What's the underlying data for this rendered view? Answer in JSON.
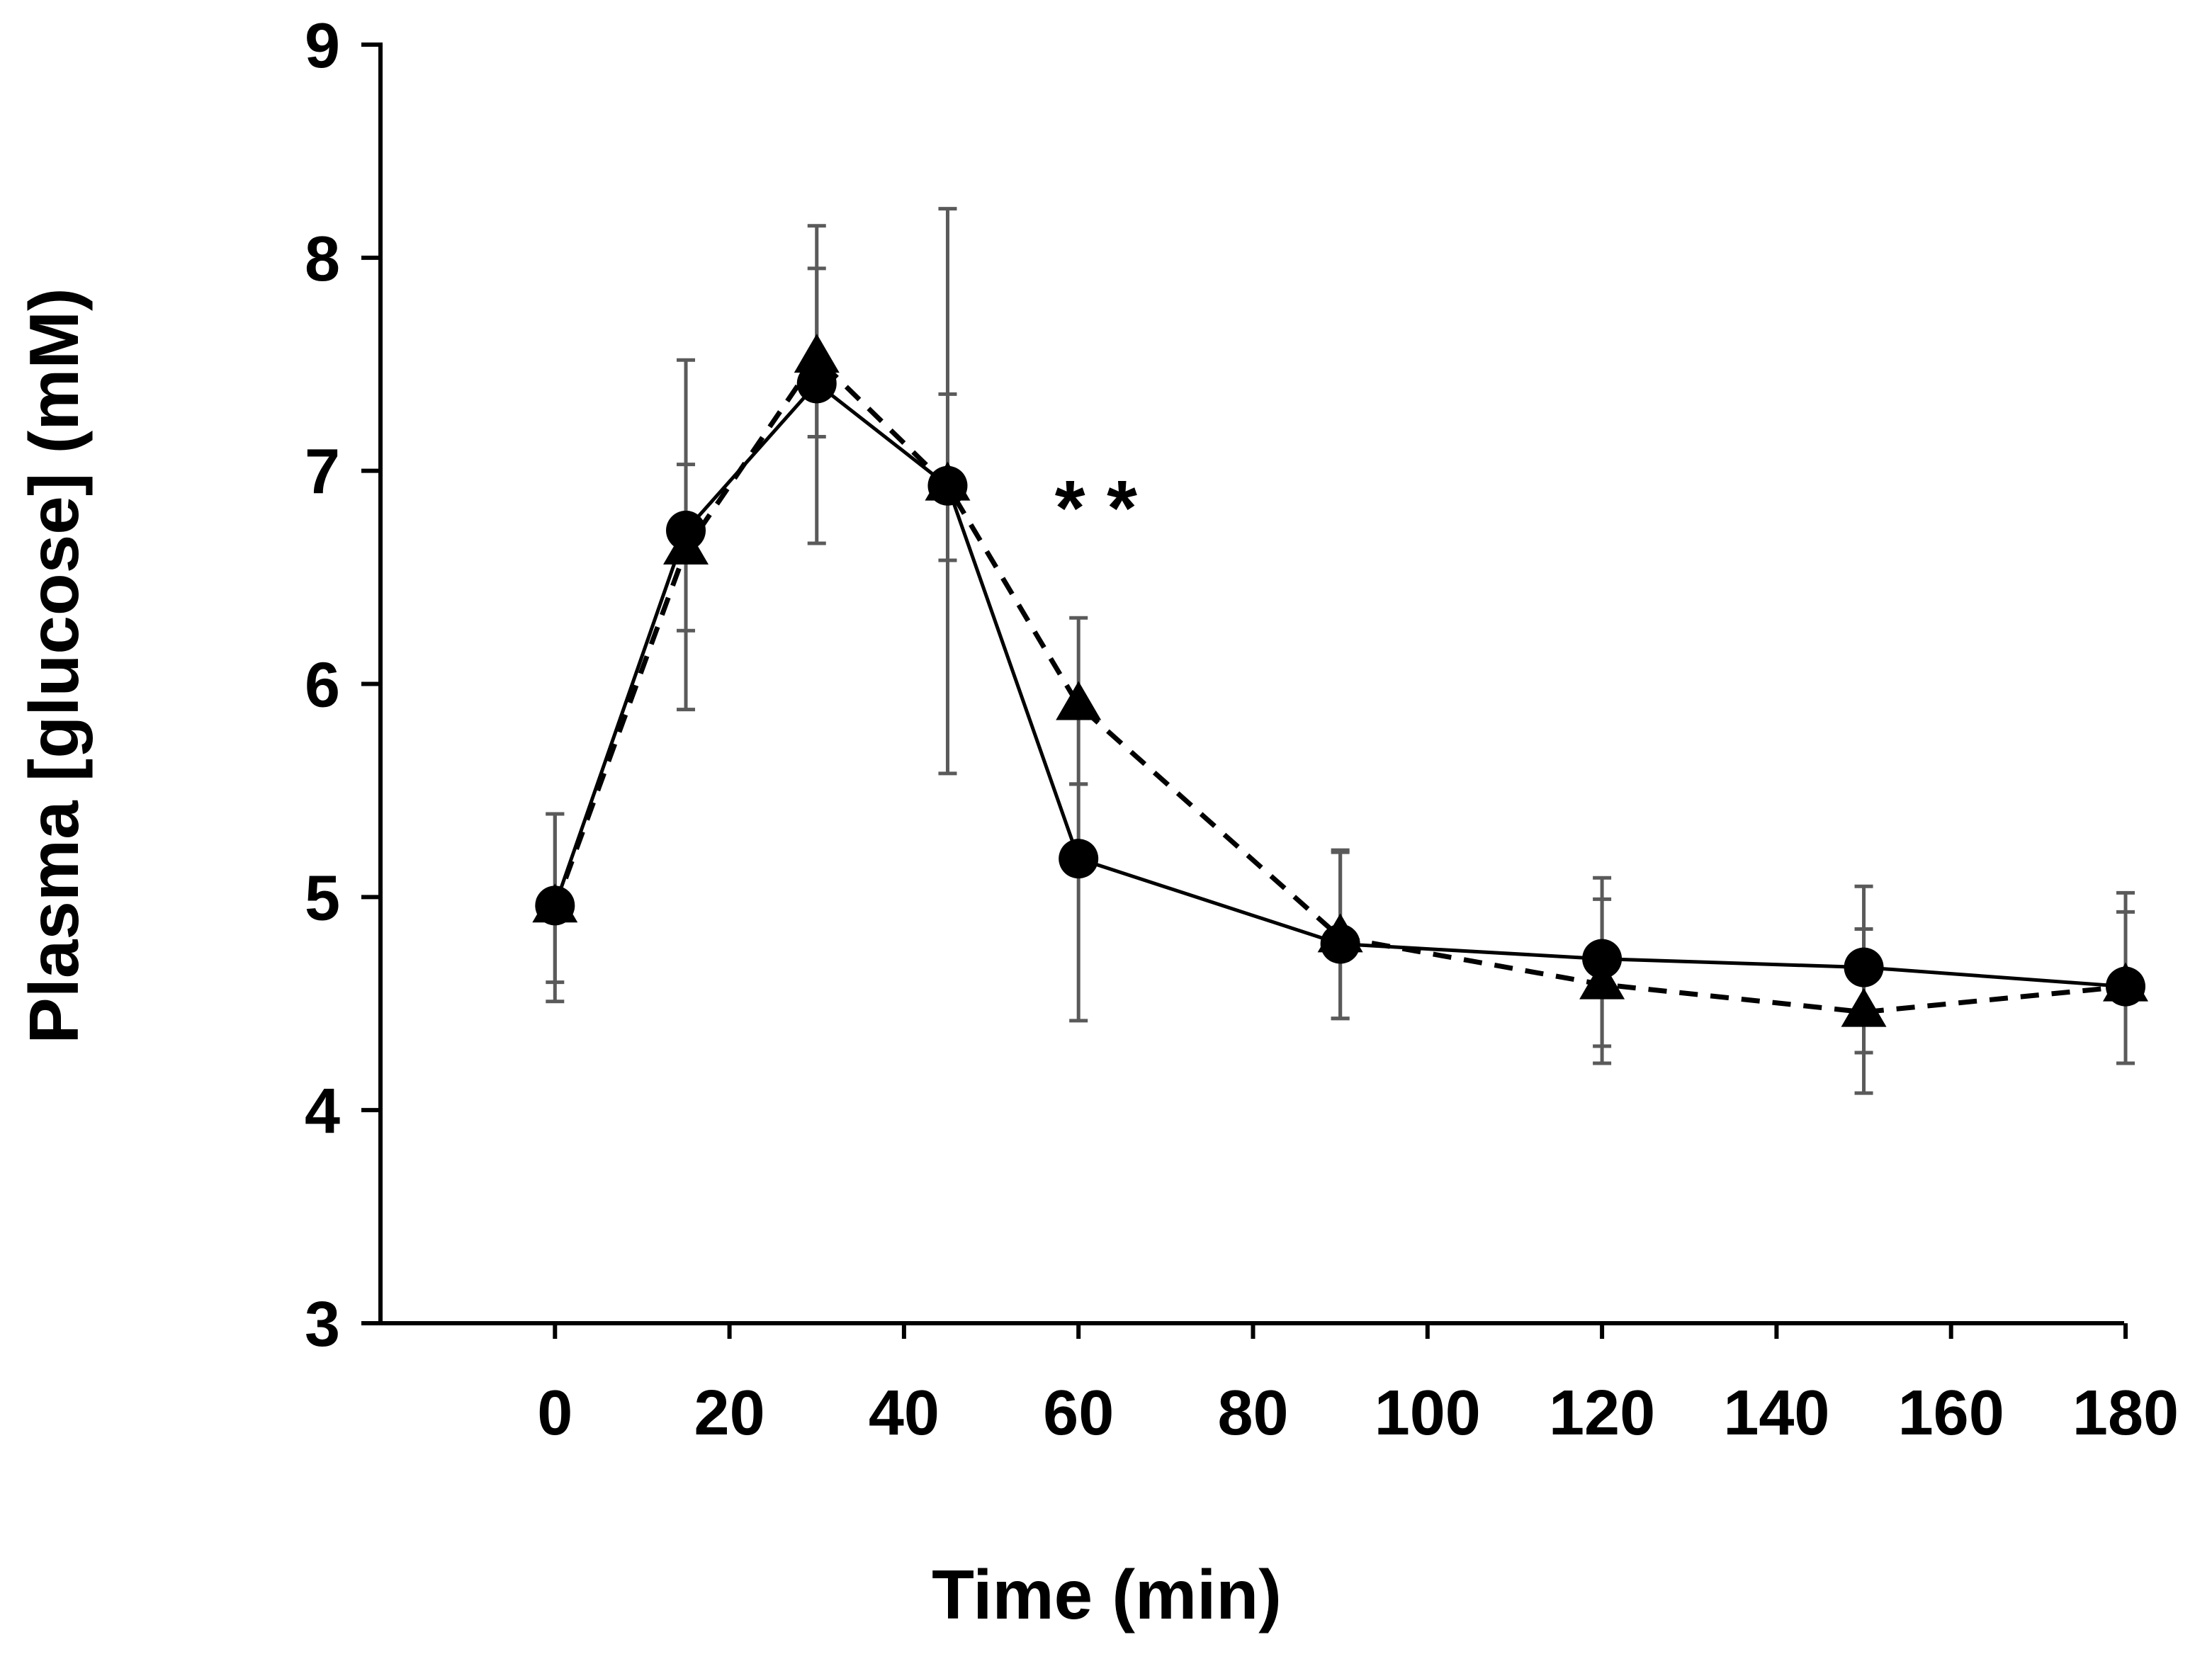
{
  "chart_data": {
    "type": "line",
    "title": "",
    "xlabel": "Time (min)",
    "ylabel": "Plasma [glucose] (mM)",
    "xlim": [
      -20,
      180
    ],
    "ylim": [
      3,
      9
    ],
    "xticks": [
      0,
      20,
      40,
      60,
      80,
      100,
      120,
      140,
      160,
      180
    ],
    "xtick_labels": [
      "0",
      "20",
      "40",
      "60",
      "80",
      "100",
      "120",
      "140",
      "160",
      "180"
    ],
    "yticks": [
      3,
      4,
      5,
      6,
      7,
      8,
      9
    ],
    "ytick_labels": [
      "3",
      "4",
      "5",
      "6",
      "7",
      "8",
      "9"
    ],
    "grid": false,
    "legend": "none",
    "x": [
      0,
      15,
      30,
      45,
      60,
      90,
      120,
      150,
      180
    ],
    "series": [
      {
        "name": "circle-solid",
        "marker": "circle",
        "line_style": "solid",
        "color": "#000000",
        "values": [
          4.96,
          6.72,
          7.41,
          6.93,
          5.18,
          4.78,
          4.71,
          4.67,
          4.58
        ],
        "error_upper": [
          5.39,
          7.52,
          8.15,
          8.23,
          5.53,
          5.22,
          5.09,
          5.05,
          5.02
        ],
        "error_lower": [
          4.51,
          5.88,
          6.66,
          5.58,
          4.42,
          4.43,
          4.22,
          4.08,
          4.22
        ]
      },
      {
        "name": "triangle-dashed",
        "marker": "triangle",
        "line_style": "dashed",
        "color": "#000000",
        "values": [
          4.95,
          6.63,
          7.53,
          6.93,
          5.9,
          4.81,
          4.59,
          4.46,
          4.58
        ],
        "error_upper": [
          5.39,
          7.03,
          7.95,
          7.36,
          6.31,
          5.21,
          4.99,
          4.85,
          4.93
        ],
        "error_lower": [
          4.6,
          6.25,
          7.16,
          6.58,
          5.53,
          4.43,
          4.3,
          4.27,
          4.22
        ]
      }
    ],
    "error_bar_color": "#5a5a5a",
    "annotations": [
      {
        "text": "* *",
        "x": 62,
        "y": 6.8
      }
    ]
  }
}
